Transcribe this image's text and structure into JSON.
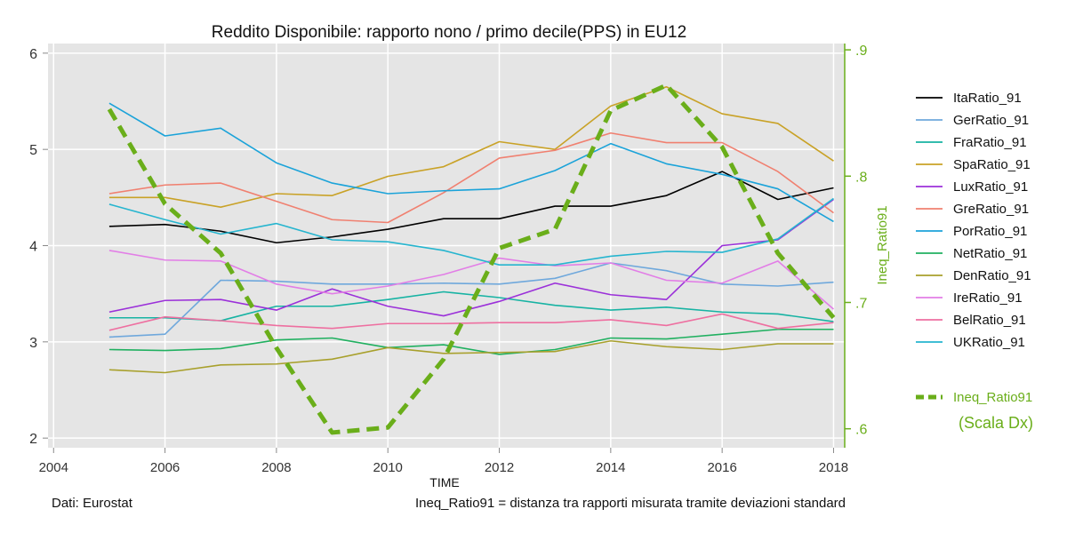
{
  "chart_data": {
    "type": "line",
    "title": "Reddito Disponibile: rapporto nono / primo decile(PPS) in EU12",
    "xlabel": "TIME",
    "ylabel": "",
    "y2label": "Ineq_Ratio91",
    "xlim": [
      2003.9,
      2018.2
    ],
    "ylim": [
      1.9,
      6.1
    ],
    "y2lim": [
      0.585,
      0.905
    ],
    "x_ticks": [
      2004,
      2006,
      2008,
      2010,
      2012,
      2014,
      2016,
      2018
    ],
    "y_ticks": [
      2,
      3,
      4,
      5,
      6
    ],
    "y2_ticks": [
      ".6",
      ".7",
      ".8",
      ".9"
    ],
    "grid": true,
    "legend_position": "right",
    "x": [
      2005,
      2006,
      2007,
      2008,
      2009,
      2010,
      2011,
      2012,
      2013,
      2014,
      2015,
      2016,
      2017,
      2018
    ],
    "series": [
      {
        "name": "ItaRatio_91",
        "color": "#000000",
        "values": [
          4.2,
          4.22,
          4.15,
          4.03,
          4.09,
          4.17,
          4.28,
          4.28,
          4.41,
          4.41,
          4.52,
          4.77,
          4.48,
          4.6
        ]
      },
      {
        "name": "GerRatio_91",
        "color": "#6fa8dc",
        "values": [
          3.05,
          3.08,
          3.64,
          3.63,
          3.6,
          3.6,
          3.61,
          3.6,
          3.66,
          3.82,
          3.74,
          3.6,
          3.58,
          3.62
        ]
      },
      {
        "name": "FraRatio_91",
        "color": "#17b3a3",
        "values": [
          3.25,
          3.25,
          3.22,
          3.37,
          3.37,
          3.44,
          3.52,
          3.46,
          3.38,
          3.33,
          3.36,
          3.31,
          3.29,
          3.21
        ]
      },
      {
        "name": "SpaRatio_91",
        "color": "#c9a227",
        "values": [
          4.5,
          4.5,
          4.4,
          4.54,
          4.52,
          4.72,
          4.82,
          5.08,
          5.0,
          5.45,
          5.65,
          5.37,
          5.27,
          4.88
        ]
      },
      {
        "name": "LuxRatio_91",
        "color": "#9b30d9",
        "values": [
          3.31,
          3.43,
          3.44,
          3.33,
          3.55,
          3.37,
          3.27,
          3.42,
          3.61,
          3.49,
          3.44,
          4.0,
          4.06,
          4.48
        ]
      },
      {
        "name": "GreRatio_91",
        "color": "#f08070",
        "values": [
          4.54,
          4.63,
          4.65,
          4.46,
          4.27,
          4.24,
          4.55,
          4.91,
          4.99,
          5.17,
          5.07,
          5.07,
          4.77,
          4.34
        ]
      },
      {
        "name": "PorRatio_91",
        "color": "#1ba3d9",
        "values": [
          5.48,
          5.14,
          5.22,
          4.86,
          4.65,
          4.54,
          4.57,
          4.59,
          4.78,
          5.06,
          4.85,
          4.74,
          4.59,
          4.25
        ]
      },
      {
        "name": "NetRatio_91",
        "color": "#20b060",
        "values": [
          2.92,
          2.91,
          2.93,
          3.02,
          3.04,
          2.94,
          2.97,
          2.87,
          2.92,
          3.04,
          3.03,
          3.08,
          3.13,
          3.13
        ]
      },
      {
        "name": "DenRatio_91",
        "color": "#a8a02c",
        "values": [
          2.71,
          2.68,
          2.76,
          2.77,
          2.82,
          2.94,
          2.88,
          2.89,
          2.9,
          3.01,
          2.95,
          2.92,
          2.98,
          2.98
        ]
      },
      {
        "name": "IreRatio_91",
        "color": "#e27ee6",
        "values": [
          3.95,
          3.85,
          3.84,
          3.6,
          3.5,
          3.58,
          3.7,
          3.87,
          3.79,
          3.82,
          3.64,
          3.61,
          3.84,
          3.34
        ]
      },
      {
        "name": "BelRatio_91",
        "color": "#ee6fa0",
        "values": [
          3.12,
          3.26,
          3.22,
          3.17,
          3.14,
          3.19,
          3.19,
          3.2,
          3.2,
          3.23,
          3.17,
          3.29,
          3.14,
          3.2
        ]
      },
      {
        "name": "UKRatio_91",
        "color": "#26b5cf",
        "values": [
          4.43,
          4.27,
          4.12,
          4.23,
          4.06,
          4.04,
          3.95,
          3.8,
          3.8,
          3.89,
          3.94,
          3.93,
          4.07,
          4.49
        ]
      }
    ],
    "secondary_series": {
      "name": "Ineq_Ratio91",
      "color": "#6aae1a",
      "axis": "right",
      "values": [
        0.853,
        0.778,
        0.739,
        0.664,
        0.597,
        0.601,
        0.655,
        0.743,
        0.758,
        0.852,
        0.872,
        0.823,
        0.739,
        0.688
      ]
    },
    "legend_note": "(Scala Dx)",
    "footnote_left": "Dati: Eurostat",
    "footnote_right": "Ineq_Ratio91 = distanza tra rapporti misurata tramite deviazioni standard"
  }
}
